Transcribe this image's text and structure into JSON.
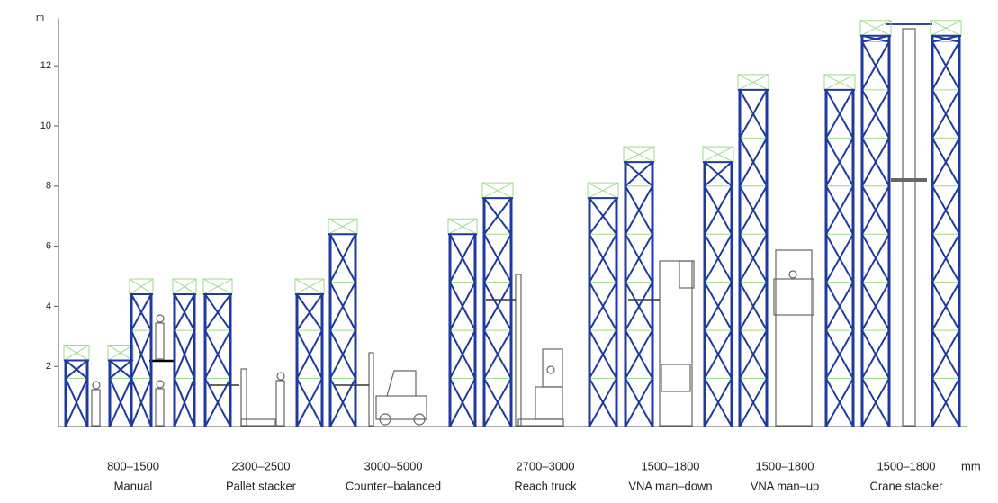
{
  "axis": {
    "unit": "m",
    "ylim": [
      0,
      14
    ],
    "yticks": [
      2,
      4,
      6,
      8,
      10,
      12
    ]
  },
  "width_unit": "mm",
  "groups": [
    {
      "aisle": "800–1500",
      "label": "Manual"
    },
    {
      "aisle": "2300–2500",
      "label": "Pallet stacker"
    },
    {
      "aisle": "3000–5000",
      "label": "Counter–balanced"
    },
    {
      "aisle": "2700–3000",
      "label": "Reach truck"
    },
    {
      "aisle": "1500–1800",
      "label": "VNA man–down"
    },
    {
      "aisle": "1500–1800",
      "label": "VNA man–up"
    },
    {
      "aisle": "1500–1800",
      "label": "Crane  stacker"
    }
  ],
  "rack_heights": [
    2.2,
    2.2,
    4.4,
    4.4,
    4.4,
    4.4,
    6.4,
    6.4,
    7.6,
    7.6,
    8.8,
    8.8,
    11.2,
    11.2,
    13,
    13
  ]
}
